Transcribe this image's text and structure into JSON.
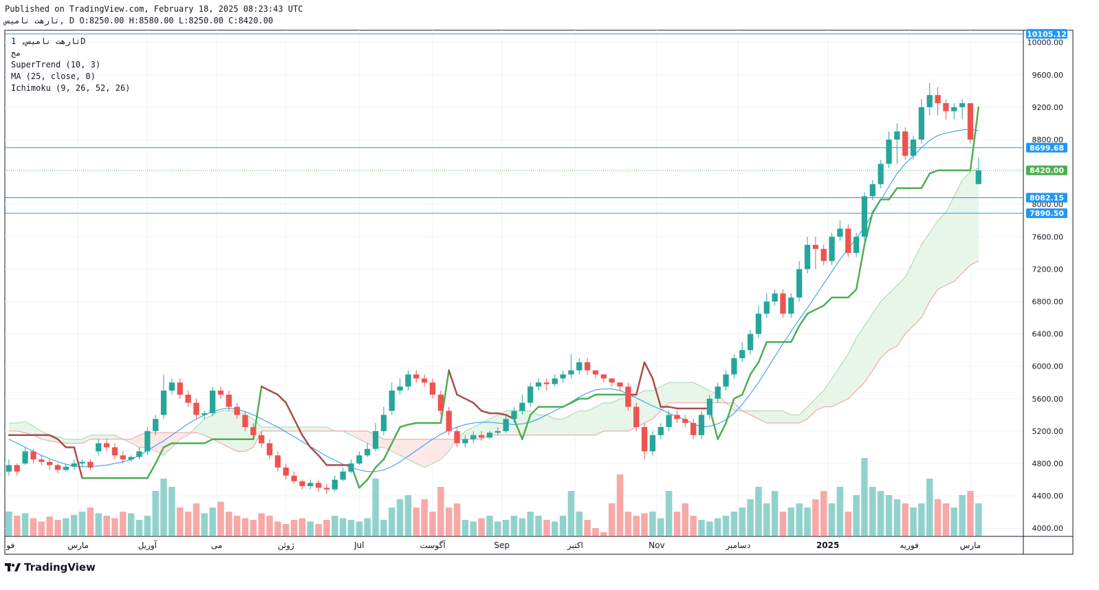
{
  "header": {
    "published": "Published on TradingView.com, February 18, 2025 08:23:43 UTC",
    "ohlc": "تارهت نامیس, D O:8250.00 H:8580.00 L:8250.00 C:8420.00"
  },
  "legend": {
    "line1": "تارهت نامیس, 1D",
    "line2": "مج",
    "supertrend": "SuperTrend (10, 3)",
    "ma": "MA (25, close, 0)",
    "ichimoku": "Ichimoku (9, 26, 52, 26)"
  },
  "branding": {
    "logo_text": "TradingView"
  },
  "colors": {
    "up": "#26a69a",
    "down": "#ef5350",
    "st_up": "#4caf50",
    "st_down": "#a84d4a",
    "ma": "#2196f3",
    "cloud_up": "#e8f5e9",
    "cloud_down": "#fde8e8",
    "price_tag": "#2196f3",
    "last_tag": "#4caf50"
  },
  "chart_data": {
    "type": "candlestick",
    "ylim": [
      3900,
      10150
    ],
    "y_ticks": [
      4000,
      4400,
      4800,
      5200,
      5600,
      6000,
      6400,
      6800,
      7200,
      7600,
      8000,
      8400,
      8800,
      9200,
      9600,
      10000
    ],
    "y_tick_labels": [
      "4000.00",
      "4400.00",
      "4800.00",
      "5200.00",
      "5600.00",
      "6000.00",
      "6400.00",
      "6800.00",
      "7200.00",
      "7600.00",
      "8000.00",
      "8400.00",
      "8800.00",
      "9200.00",
      "9600.00",
      "10000.00"
    ],
    "x_labels": [
      "فو",
      "مارس",
      "آوریل",
      "می",
      "ژوئن",
      "Jul",
      "آگوست",
      "Sep",
      "اکتبر",
      "Nov",
      "دسامبر",
      "2025",
      "فوریه",
      "مارس"
    ],
    "x_label_pos": [
      0.2,
      9,
      17.5,
      26,
      34.5,
      43.5,
      52.5,
      61,
      70,
      80,
      90,
      101,
      111,
      118.5
    ],
    "x_range": [
      0,
      125
    ],
    "price_lines": [
      {
        "value": 10105.12,
        "label": "10105.12"
      },
      {
        "value": 8699.68,
        "label": "8699.68"
      },
      {
        "value": 8082.15,
        "label": "8082.15"
      },
      {
        "value": 7890.5,
        "label": "7890.50"
      }
    ],
    "last_price": {
      "value": 8420.0,
      "label": "8420.00"
    },
    "close": [
      4780,
      4700,
      4950,
      4850,
      4820,
      4780,
      4720,
      4760,
      4800,
      4820,
      4750,
      5050,
      5000,
      4900,
      4850,
      4880,
      4950,
      5200,
      5350,
      5700,
      5800,
      5650,
      5550,
      5400,
      5420,
      5700,
      5650,
      5500,
      5400,
      5250,
      5150,
      5050,
      4900,
      4750,
      4650,
      4580,
      4520,
      4560,
      4500,
      4480,
      4600,
      4700,
      4800,
      4900,
      4980,
      5200,
      5400,
      5700,
      5750,
      5900,
      5850,
      5800,
      5650,
      5450,
      5200,
      5050,
      5100,
      5150,
      5120,
      5180,
      5200,
      5350,
      5450,
      5550,
      5750,
      5800,
      5780,
      5850,
      5900,
      5950,
      6050,
      5950,
      5900,
      5850,
      5800,
      5750,
      5500,
      5250,
      4950,
      5150,
      5250,
      5400,
      5350,
      5300,
      5150,
      5400,
      5600,
      5750,
      5900,
      6100,
      6200,
      6400,
      6650,
      6800,
      6900,
      6650,
      6850,
      7200,
      7500,
      7450,
      7300,
      7600,
      7700,
      7400,
      7600,
      8100,
      8250,
      8500,
      8800,
      8900,
      8600,
      8800,
      9200,
      9350,
      9250,
      9150,
      9200,
      9250,
      8800,
      8420
    ],
    "open": [
      4700,
      4780,
      4800,
      4950,
      4850,
      4820,
      4780,
      4720,
      4760,
      4800,
      4820,
      4950,
      5050,
      5000,
      4900,
      4850,
      4880,
      4950,
      5200,
      5400,
      5700,
      5800,
      5650,
      5550,
      5400,
      5420,
      5700,
      5650,
      5500,
      5400,
      5250,
      5150,
      5050,
      4900,
      4750,
      4650,
      4580,
      4520,
      4560,
      4500,
      4480,
      4600,
      4700,
      4800,
      4900,
      4980,
      5200,
      5450,
      5700,
      5750,
      5900,
      5850,
      5800,
      5650,
      5450,
      5200,
      5050,
      5100,
      5150,
      5120,
      5180,
      5200,
      5350,
      5450,
      5550,
      5750,
      5800,
      5780,
      5850,
      5900,
      5950,
      6050,
      5950,
      5900,
      5850,
      5800,
      5750,
      5500,
      5250,
      4950,
      5150,
      5250,
      5400,
      5350,
      5300,
      5150,
      5400,
      5600,
      5750,
      5900,
      6100,
      6200,
      6400,
      6650,
      6800,
      6900,
      6650,
      6850,
      7200,
      7500,
      7450,
      7300,
      7600,
      7700,
      7400,
      7600,
      8100,
      8250,
      8500,
      8800,
      8900,
      8600,
      8800,
      9200,
      9350,
      9250,
      9150,
      9200,
      9250,
      8250
    ],
    "high": [
      4850,
      4800,
      5000,
      4980,
      4900,
      4850,
      4800,
      4800,
      4850,
      4850,
      4850,
      5100,
      5100,
      5050,
      4950,
      4900,
      5000,
      5250,
      5400,
      5900,
      5850,
      5850,
      5700,
      5600,
      5450,
      5750,
      5750,
      5700,
      5550,
      5450,
      5300,
      5200,
      5100,
      4950,
      4800,
      4700,
      4600,
      4600,
      4600,
      4550,
      4650,
      4750,
      4850,
      4950,
      5050,
      5300,
      5500,
      5800,
      5850,
      5950,
      5950,
      5900,
      5850,
      5700,
      5500,
      5250,
      5150,
      5200,
      5200,
      5200,
      5250,
      5400,
      5500,
      5650,
      5800,
      5850,
      5850,
      5900,
      5950,
      6150,
      6100,
      6100,
      5950,
      5900,
      5850,
      5800,
      5800,
      5550,
      5300,
      5200,
      5300,
      5450,
      5450,
      5400,
      5350,
      5450,
      5650,
      5800,
      5950,
      6150,
      6300,
      6450,
      6750,
      6900,
      6950,
      6950,
      6900,
      7300,
      7600,
      7600,
      7500,
      7650,
      7800,
      7750,
      7650,
      8150,
      8300,
      8550,
      8900,
      9000,
      8950,
      8850,
      9300,
      9500,
      9450,
      9300,
      9250,
      9300,
      9250,
      8580
    ],
    "low": [
      4650,
      4650,
      4780,
      4800,
      4780,
      4720,
      4680,
      4700,
      4720,
      4760,
      4720,
      4900,
      4950,
      4850,
      4800,
      4820,
      4850,
      4900,
      5150,
      5350,
      5650,
      5600,
      5500,
      5350,
      5350,
      5380,
      5600,
      5450,
      5350,
      5200,
      5100,
      5000,
      4850,
      4700,
      4600,
      4550,
      4480,
      4480,
      4450,
      4420,
      4450,
      4580,
      4680,
      4780,
      4880,
      4950,
      5150,
      5400,
      5650,
      5700,
      5800,
      5750,
      5600,
      5400,
      5150,
      5000,
      5000,
      5050,
      5080,
      5100,
      5150,
      5180,
      5300,
      5400,
      5500,
      5700,
      5700,
      5750,
      5800,
      5850,
      5900,
      5900,
      5850,
      5800,
      5750,
      5700,
      5450,
      5200,
      4850,
      4900,
      5100,
      5200,
      5300,
      5250,
      5100,
      5100,
      5350,
      5550,
      5700,
      5850,
      6050,
      6150,
      6350,
      6600,
      6750,
      6600,
      6600,
      6800,
      7150,
      7200,
      7250,
      7250,
      7550,
      7350,
      7350,
      7550,
      8050,
      8200,
      8450,
      8500,
      8550,
      8550,
      8750,
      9100,
      9100,
      9050,
      9050,
      9050,
      8750,
      8250
    ],
    "volume": [
      0.3,
      0.25,
      0.28,
      0.22,
      0.18,
      0.24,
      0.2,
      0.22,
      0.26,
      0.3,
      0.35,
      0.28,
      0.25,
      0.22,
      0.3,
      0.28,
      0.2,
      0.25,
      0.55,
      0.7,
      0.6,
      0.35,
      0.3,
      0.4,
      0.28,
      0.35,
      0.42,
      0.3,
      0.25,
      0.22,
      0.2,
      0.28,
      0.25,
      0.18,
      0.15,
      0.2,
      0.22,
      0.18,
      0.15,
      0.2,
      0.25,
      0.22,
      0.2,
      0.18,
      0.22,
      0.7,
      0.2,
      0.35,
      0.45,
      0.5,
      0.35,
      0.45,
      0.3,
      0.6,
      0.35,
      0.4,
      0.2,
      0.18,
      0.22,
      0.25,
      0.18,
      0.2,
      0.25,
      0.22,
      0.3,
      0.25,
      0.2,
      0.18,
      0.25,
      0.55,
      0.3,
      0.2,
      0.1,
      0.05,
      0.4,
      0.75,
      0.3,
      0.25,
      0.28,
      0.3,
      0.22,
      0.55,
      0.3,
      0.4,
      0.25,
      0.2,
      0.18,
      0.22,
      0.25,
      0.3,
      0.35,
      0.45,
      0.6,
      0.4,
      0.55,
      0.3,
      0.35,
      0.4,
      0.35,
      0.45,
      0.55,
      0.4,
      0.6,
      0.3,
      0.5,
      0.95,
      0.6,
      0.55,
      0.5,
      0.45,
      0.4,
      0.35,
      0.4,
      0.7,
      0.45,
      0.4,
      0.35,
      0.5,
      0.55,
      0.4
    ],
    "supertrend": [
      5150,
      5150,
      5150,
      5150,
      5150,
      5150,
      5100,
      5000,
      5000,
      4620,
      4620,
      4620,
      4620,
      4620,
      4620,
      4620,
      4620,
      4620,
      4800,
      5000,
      5050,
      5050,
      5050,
      5050,
      5050,
      5100,
      5100,
      5100,
      5100,
      5100,
      5100,
      5750,
      5700,
      5650,
      5550,
      5350,
      5150,
      5000,
      4900,
      4780,
      4780,
      4780,
      4780,
      4500,
      4600,
      4750,
      4850,
      5050,
      5250,
      5280,
      5300,
      5300,
      5300,
      5300,
      5950,
      5650,
      5600,
      5550,
      5450,
      5420,
      5420,
      5400,
      5350,
      5100,
      5400,
      5500,
      5500,
      5500,
      5500,
      5550,
      5600,
      5600,
      5650,
      5650,
      5650,
      5650,
      5650,
      5650,
      6050,
      5850,
      5500,
      5500,
      5480,
      5480,
      5480,
      5480,
      5480,
      5100,
      5300,
      5600,
      5650,
      5900,
      6050,
      6300,
      6300,
      6300,
      6300,
      6500,
      6650,
      6700,
      6750,
      6850,
      6850,
      6850,
      6950,
      7500,
      7900,
      8060,
      8060,
      8200,
      8200,
      8200,
      8200,
      8380,
      8420,
      8420,
      8420,
      8420,
      8420,
      9200
    ],
    "ma": [
      5100,
      5050,
      5000,
      4950,
      4900,
      4860,
      4820,
      4790,
      4770,
      4760,
      4760,
      4770,
      4780,
      4800,
      4820,
      4850,
      4900,
      4960,
      5020,
      5080,
      5150,
      5220,
      5290,
      5350,
      5400,
      5440,
      5470,
      5480,
      5470,
      5440,
      5400,
      5350,
      5300,
      5250,
      5190,
      5130,
      5070,
      5010,
      4950,
      4890,
      4840,
      4790,
      4750,
      4720,
      4700,
      4700,
      4720,
      4760,
      4820,
      4890,
      4960,
      5030,
      5100,
      5160,
      5210,
      5250,
      5280,
      5300,
      5310,
      5310,
      5300,
      5290,
      5280,
      5290,
      5310,
      5350,
      5400,
      5450,
      5500,
      5560,
      5620,
      5670,
      5710,
      5720,
      5720,
      5700,
      5660,
      5610,
      5560,
      5510,
      5470,
      5420,
      5380,
      5340,
      5290,
      5250,
      5260,
      5290,
      5340,
      5420,
      5530,
      5660,
      5800,
      5960,
      6120,
      6280,
      6430,
      6580,
      6720,
      6870,
      7020,
      7170,
      7320,
      7450,
      7580,
      7720,
      7880,
      8050,
      8220,
      8380,
      8500,
      8600,
      8700,
      8790,
      8850,
      8880,
      8900,
      8920,
      8930,
      8910
    ],
    "cloud": {
      "span_a": [
        5300,
        5300,
        5320,
        5260,
        5200,
        5150,
        5130,
        5100,
        5100,
        5100,
        5150,
        5150,
        5150,
        5150,
        5100,
        5050,
        5000,
        5000,
        4950,
        4900,
        5000,
        5100,
        5150,
        5250,
        5350,
        5400,
        5450,
        5450,
        5450,
        5400,
        5350,
        5250,
        5250,
        5250,
        5250,
        5250,
        5250,
        5250,
        5250,
        5250,
        5200,
        5200,
        5150,
        5100,
        5050,
        5000,
        5000,
        4950,
        4900,
        4850,
        4800,
        4750,
        4800,
        4850,
        4950,
        5100,
        5200,
        5250,
        5300,
        5350,
        5400,
        5450,
        5450,
        5450,
        5450,
        5400,
        5400,
        5350,
        5350,
        5400,
        5450,
        5450,
        5500,
        5550,
        5550,
        5600,
        5600,
        5650,
        5700,
        5700,
        5750,
        5800,
        5800,
        5800,
        5800,
        5750,
        5700,
        5650,
        5550,
        5450,
        5450,
        5450,
        5450,
        5450,
        5450,
        5450,
        5400,
        5400,
        5500,
        5600,
        5700,
        5850,
        6000,
        6150,
        6350,
        6500,
        6650,
        6800,
        6900,
        7000,
        7100,
        7300,
        7500,
        7650,
        7800,
        7900,
        8100,
        8300,
        8400,
        8450
      ],
      "span_b": [
        5200,
        5200,
        5180,
        5150,
        5100,
        5080,
        5060,
        5050,
        5050,
        5050,
        5100,
        5100,
        5100,
        5100,
        5100,
        5100,
        5150,
        5180,
        5180,
        5180,
        5180,
        5180,
        5180,
        5180,
        5150,
        5100,
        5050,
        5000,
        4950,
        4950,
        5000,
        5200,
        5200,
        5200,
        5200,
        5200,
        5200,
        5200,
        5200,
        5200,
        5200,
        5200,
        5200,
        5200,
        5200,
        5150,
        5100,
        5100,
        5100,
        5100,
        5100,
        5100,
        5100,
        5100,
        5100,
        5100,
        5100,
        5100,
        5100,
        5150,
        5150,
        5150,
        5150,
        5150,
        5150,
        5150,
        5150,
        5150,
        5150,
        5150,
        5150,
        5150,
        5150,
        5200,
        5200,
        5200,
        5200,
        5250,
        5300,
        5350,
        5450,
        5550,
        5550,
        5550,
        5550,
        5550,
        5550,
        5550,
        5550,
        5550,
        5450,
        5400,
        5350,
        5300,
        5300,
        5300,
        5300,
        5300,
        5350,
        5450,
        5500,
        5500,
        5550,
        5600,
        5700,
        5800,
        5950,
        6100,
        6200,
        6250,
        6400,
        6500,
        6600,
        6800,
        6950,
        7000,
        7050,
        7150,
        7250,
        7300
      ]
    }
  }
}
